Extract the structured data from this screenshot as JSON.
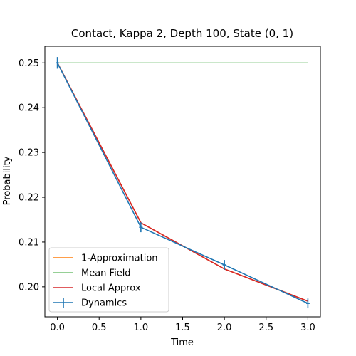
{
  "chart_data": {
    "type": "line",
    "title": "Contact, Kappa 2, Depth 100,  State (0, 1)",
    "xlabel": "Time",
    "ylabel": "Probability",
    "xlim": [
      -0.15,
      3.15
    ],
    "ylim": [
      0.1933,
      0.2537
    ],
    "x_ticks": [
      0.0,
      0.5,
      1.0,
      1.5,
      2.0,
      2.5,
      3.0
    ],
    "x_tick_labels": [
      "0.0",
      "0.5",
      "1.0",
      "1.5",
      "2.0",
      "2.5",
      "3.0"
    ],
    "y_ticks": [
      0.2,
      0.21,
      0.22,
      0.23,
      0.24,
      0.25
    ],
    "y_tick_labels": [
      "0.20",
      "0.21",
      "0.22",
      "0.23",
      "0.24",
      "0.25"
    ],
    "grid": false,
    "legend_position": "lower-left",
    "series": [
      {
        "name": "1-Approximation",
        "color": "#ff7f0e",
        "x": [
          0,
          1,
          2,
          3
        ],
        "y": [
          0.25,
          0.2143,
          0.204,
          0.1968
        ]
      },
      {
        "name": "Mean Field",
        "color": "#2ca02c",
        "x": [
          0,
          1,
          2,
          3
        ],
        "y": [
          0.25,
          0.25,
          0.25,
          0.25
        ]
      },
      {
        "name": "Local Approx",
        "color": "#d62728",
        "x": [
          0,
          1,
          2,
          3
        ],
        "y": [
          0.25,
          0.2143,
          0.204,
          0.1968
        ]
      },
      {
        "name": "Dynamics",
        "color": "#1f77b4",
        "x": [
          0,
          1,
          2,
          3
        ],
        "y": [
          0.25,
          0.2133,
          0.2049,
          0.1963
        ],
        "yerr": [
          0.0013,
          0.0011,
          0.0011,
          0.0011
        ],
        "errorbar": true
      }
    ]
  }
}
